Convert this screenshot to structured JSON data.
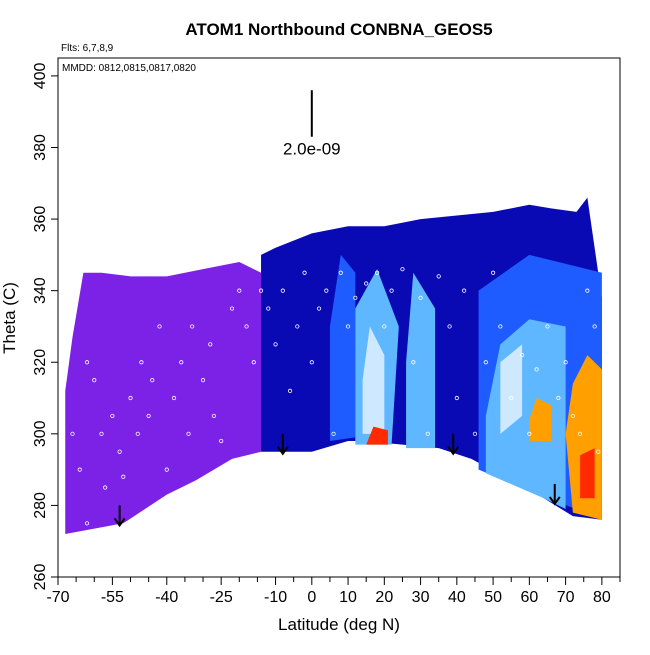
{
  "chart_data": {
    "type": "heatmap",
    "title": "ATOM1 Northbound CONBNA_GEOS5",
    "annotations": {
      "flights": "Flts: 6,7,8,9",
      "dates": "MMDD: 0812,0815,0817,0820",
      "scale_label": "2.0e-09"
    },
    "xlabel": "Latitude (deg N)",
    "ylabel": "Theta (C)",
    "xlim": [
      -70,
      85
    ],
    "ylim": [
      260,
      405
    ],
    "x_ticks_major": [
      -70,
      -55,
      -40,
      -25,
      -10,
      0,
      10,
      20,
      30,
      40,
      50,
      60,
      70,
      80
    ],
    "x_ticks_minor": [
      -65,
      -60,
      -50,
      -45,
      -35,
      -30,
      -20,
      -15,
      -5,
      5,
      15,
      25,
      35,
      45,
      55,
      65,
      75,
      85
    ],
    "y_ticks": [
      260,
      280,
      300,
      320,
      340,
      360,
      380,
      400
    ],
    "colors": {
      "purple": "#7b22e6",
      "dark_blue": "#0a0ab4",
      "blue": "#1f5cff",
      "light_blue": "#5fb8ff",
      "pale_blue": "#cde8ff",
      "orange": "#ffa000",
      "red": "#ff2a00"
    },
    "top_boundary": [
      [
        -68,
        312
      ],
      [
        -66,
        327
      ],
      [
        -63,
        345
      ],
      [
        -58,
        345
      ],
      [
        -50,
        344
      ],
      [
        -40,
        344
      ],
      [
        -30,
        346
      ],
      [
        -20,
        348
      ],
      [
        -10,
        352
      ],
      [
        0,
        356
      ],
      [
        10,
        358
      ],
      [
        20,
        358
      ],
      [
        30,
        360
      ],
      [
        40,
        361
      ],
      [
        50,
        362
      ],
      [
        60,
        364
      ],
      [
        66,
        363
      ],
      [
        73,
        362
      ],
      [
        76,
        366
      ],
      [
        78,
        352
      ],
      [
        80,
        338
      ],
      [
        80,
        300
      ]
    ],
    "bottom_boundary": [
      [
        80,
        276
      ],
      [
        72,
        277
      ],
      [
        64,
        282
      ],
      [
        55,
        287
      ],
      [
        44,
        293
      ],
      [
        35,
        296
      ],
      [
        25,
        297
      ],
      [
        14,
        298
      ],
      [
        10,
        298
      ],
      [
        0,
        295
      ],
      [
        -10,
        295
      ],
      [
        -22,
        293
      ],
      [
        -32,
        287
      ],
      [
        -40,
        283
      ],
      [
        -52,
        275
      ],
      [
        -60,
        272
      ],
      [
        -68,
        272
      ]
    ],
    "regions": [
      {
        "color": "purple",
        "polygon": [
          [
            -68,
            272
          ],
          [
            -52,
            275
          ],
          [
            -40,
            283
          ],
          [
            -32,
            287
          ],
          [
            -22,
            293
          ],
          [
            -14,
            295
          ],
          [
            -14,
            345
          ],
          [
            -20,
            348
          ],
          [
            -30,
            346
          ],
          [
            -40,
            344
          ],
          [
            -50,
            344
          ],
          [
            -58,
            345
          ],
          [
            -63,
            345
          ],
          [
            -66,
            327
          ],
          [
            -68,
            312
          ]
        ]
      },
      {
        "color": "dark_blue",
        "polygon": [
          [
            -14,
            295
          ],
          [
            0,
            295
          ],
          [
            10,
            298
          ],
          [
            14,
            298
          ],
          [
            25,
            297
          ],
          [
            35,
            296
          ],
          [
            44,
            293
          ],
          [
            55,
            287
          ],
          [
            64,
            282
          ],
          [
            72,
            277
          ],
          [
            80,
            276
          ],
          [
            80,
            338
          ],
          [
            78,
            352
          ],
          [
            76,
            366
          ],
          [
            73,
            362
          ],
          [
            66,
            363
          ],
          [
            60,
            364
          ],
          [
            50,
            362
          ],
          [
            40,
            361
          ],
          [
            30,
            360
          ],
          [
            20,
            358
          ],
          [
            10,
            358
          ],
          [
            0,
            356
          ],
          [
            -10,
            352
          ],
          [
            -14,
            350
          ]
        ]
      },
      {
        "color": "blue",
        "polygon": [
          [
            5,
            298
          ],
          [
            12,
            299
          ],
          [
            12,
            345
          ],
          [
            8,
            350
          ],
          [
            5,
            330
          ]
        ]
      },
      {
        "color": "blue",
        "polygon": [
          [
            46,
            290
          ],
          [
            80,
            276
          ],
          [
            80,
            345
          ],
          [
            60,
            350
          ],
          [
            46,
            340
          ]
        ]
      },
      {
        "color": "light_blue",
        "polygon": [
          [
            12,
            297
          ],
          [
            22,
            297
          ],
          [
            24,
            330
          ],
          [
            18,
            346
          ],
          [
            12,
            335
          ]
        ]
      },
      {
        "color": "light_blue",
        "polygon": [
          [
            26,
            296
          ],
          [
            34,
            296
          ],
          [
            34,
            335
          ],
          [
            28,
            345
          ],
          [
            26,
            320
          ]
        ]
      },
      {
        "color": "light_blue",
        "polygon": [
          [
            48,
            289
          ],
          [
            64,
            282
          ],
          [
            70,
            279
          ],
          [
            70,
            330
          ],
          [
            60,
            332
          ],
          [
            52,
            325
          ],
          [
            48,
            305
          ]
        ]
      },
      {
        "color": "pale_blue",
        "polygon": [
          [
            14,
            300
          ],
          [
            20,
            300
          ],
          [
            20,
            322
          ],
          [
            16,
            330
          ],
          [
            14,
            315
          ]
        ]
      },
      {
        "color": "pale_blue",
        "polygon": [
          [
            52,
            300
          ],
          [
            58,
            305
          ],
          [
            58,
            325
          ],
          [
            52,
            320
          ]
        ]
      },
      {
        "color": "orange",
        "polygon": [
          [
            60,
            298
          ],
          [
            66,
            298
          ],
          [
            66,
            308
          ],
          [
            62,
            310
          ],
          [
            60,
            304
          ]
        ]
      },
      {
        "color": "orange",
        "polygon": [
          [
            72,
            278
          ],
          [
            80,
            276
          ],
          [
            80,
            318
          ],
          [
            76,
            322
          ],
          [
            72,
            314
          ],
          [
            70,
            300
          ]
        ]
      },
      {
        "color": "red",
        "polygon": [
          [
            15,
            297
          ],
          [
            21,
            297
          ],
          [
            21,
            301
          ],
          [
            17,
            302
          ]
        ]
      },
      {
        "color": "red",
        "polygon": [
          [
            74,
            282
          ],
          [
            78,
            282
          ],
          [
            78,
            296
          ],
          [
            74,
            294
          ]
        ]
      }
    ],
    "arrows": [
      [
        -53,
        280
      ],
      [
        -8,
        300
      ],
      [
        39,
        300
      ],
      [
        67,
        286
      ]
    ],
    "sample_points": [
      [
        -66,
        300
      ],
      [
        -64,
        290
      ],
      [
        -62,
        275
      ],
      [
        -62,
        320
      ],
      [
        -60,
        315
      ],
      [
        -58,
        300
      ],
      [
        -57,
        285
      ],
      [
        -55,
        305
      ],
      [
        -53,
        295
      ],
      [
        -52,
        288
      ],
      [
        -50,
        310
      ],
      [
        -48,
        300
      ],
      [
        -47,
        320
      ],
      [
        -45,
        305
      ],
      [
        -44,
        315
      ],
      [
        -42,
        330
      ],
      [
        -40,
        290
      ],
      [
        -38,
        310
      ],
      [
        -36,
        320
      ],
      [
        -34,
        300
      ],
      [
        -33,
        330
      ],
      [
        -30,
        315
      ],
      [
        -28,
        325
      ],
      [
        -27,
        305
      ],
      [
        -25,
        298
      ],
      [
        -22,
        335
      ],
      [
        -20,
        340
      ],
      [
        -18,
        330
      ],
      [
        -16,
        320
      ],
      [
        -14,
        340
      ],
      [
        -12,
        335
      ],
      [
        -10,
        325
      ],
      [
        -8,
        340
      ],
      [
        -6,
        312
      ],
      [
        -4,
        330
      ],
      [
        -2,
        345
      ],
      [
        0,
        320
      ],
      [
        2,
        335
      ],
      [
        4,
        340
      ],
      [
        6,
        300
      ],
      [
        8,
        345
      ],
      [
        10,
        330
      ],
      [
        12,
        338
      ],
      [
        15,
        342
      ],
      [
        18,
        345
      ],
      [
        20,
        330
      ],
      [
        22,
        340
      ],
      [
        25,
        346
      ],
      [
        28,
        320
      ],
      [
        30,
        338
      ],
      [
        32,
        300
      ],
      [
        35,
        344
      ],
      [
        38,
        330
      ],
      [
        40,
        310
      ],
      [
        42,
        340
      ],
      [
        45,
        300
      ],
      [
        48,
        320
      ],
      [
        50,
        345
      ],
      [
        52,
        330
      ],
      [
        55,
        310
      ],
      [
        58,
        322
      ],
      [
        60,
        300
      ],
      [
        62,
        318
      ],
      [
        65,
        330
      ],
      [
        68,
        310
      ],
      [
        70,
        320
      ],
      [
        72,
        305
      ],
      [
        74,
        300
      ],
      [
        76,
        340
      ],
      [
        78,
        330
      ],
      [
        79,
        295
      ]
    ]
  }
}
